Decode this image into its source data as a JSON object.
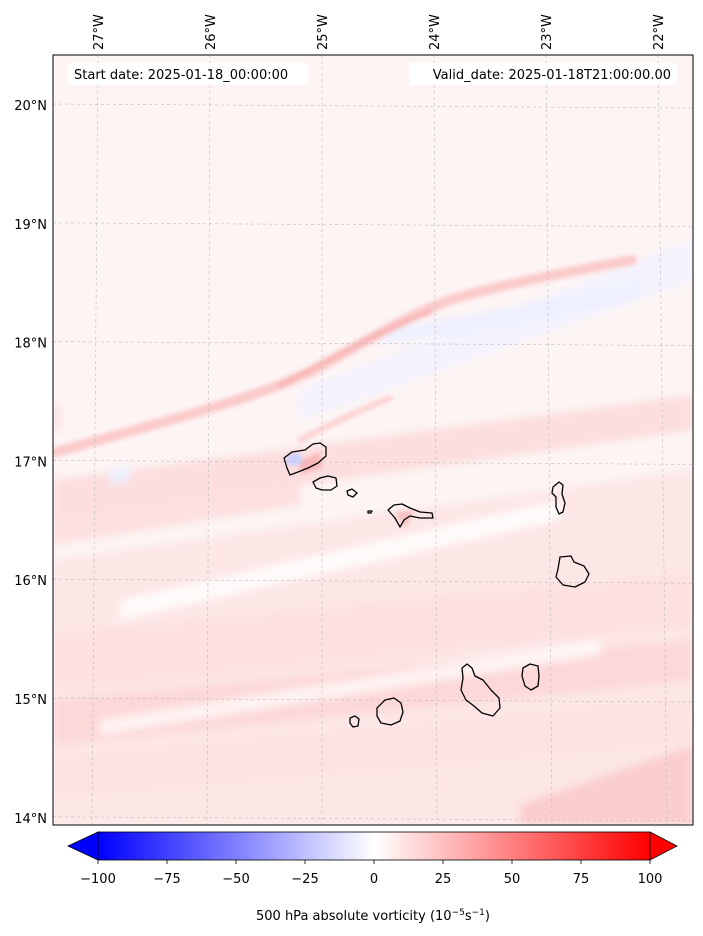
{
  "map": {
    "start_date_label": "Start date: 2025-01-18_00:00:00",
    "valid_date_label": "Valid_date: 2025-01-18T21:00:00.00",
    "lon_ticks": [
      {
        "value": -27,
        "label": "27°W"
      },
      {
        "value": -26,
        "label": "26°W"
      },
      {
        "value": -25,
        "label": "25°W"
      },
      {
        "value": -24,
        "label": "24°W"
      },
      {
        "value": -23,
        "label": "23°W"
      },
      {
        "value": -22,
        "label": "22°W"
      }
    ],
    "lat_ticks": [
      {
        "value": 20,
        "label": "20°N"
      },
      {
        "value": 19,
        "label": "19°N"
      },
      {
        "value": 18,
        "label": "18°N"
      },
      {
        "value": 17,
        "label": "17°N"
      },
      {
        "value": 16,
        "label": "16°N"
      },
      {
        "value": 15,
        "label": "15°N"
      },
      {
        "value": 14,
        "label": "14°N"
      }
    ],
    "field_colors": {
      "background": "#fdf4f4",
      "light_red": "#fde3e3",
      "medium_red": "#fbcaca",
      "light_blue": "#eef0ff",
      "white": "#ffffff"
    }
  },
  "colorbar": {
    "ticks": [
      -100,
      -75,
      -50,
      -25,
      0,
      25,
      50,
      75,
      100
    ],
    "tick_labels": [
      "−100",
      "−75",
      "−50",
      "−25",
      "0",
      "25",
      "50",
      "75",
      "100"
    ],
    "min": -100,
    "max": 100,
    "extend": "both",
    "cmap": "bwr",
    "label_prefix": "500 hPa absolute vorticity (10",
    "label_exp1": "−5",
    "label_mid": "s",
    "label_exp2": "−1",
    "label_suffix": ")"
  }
}
